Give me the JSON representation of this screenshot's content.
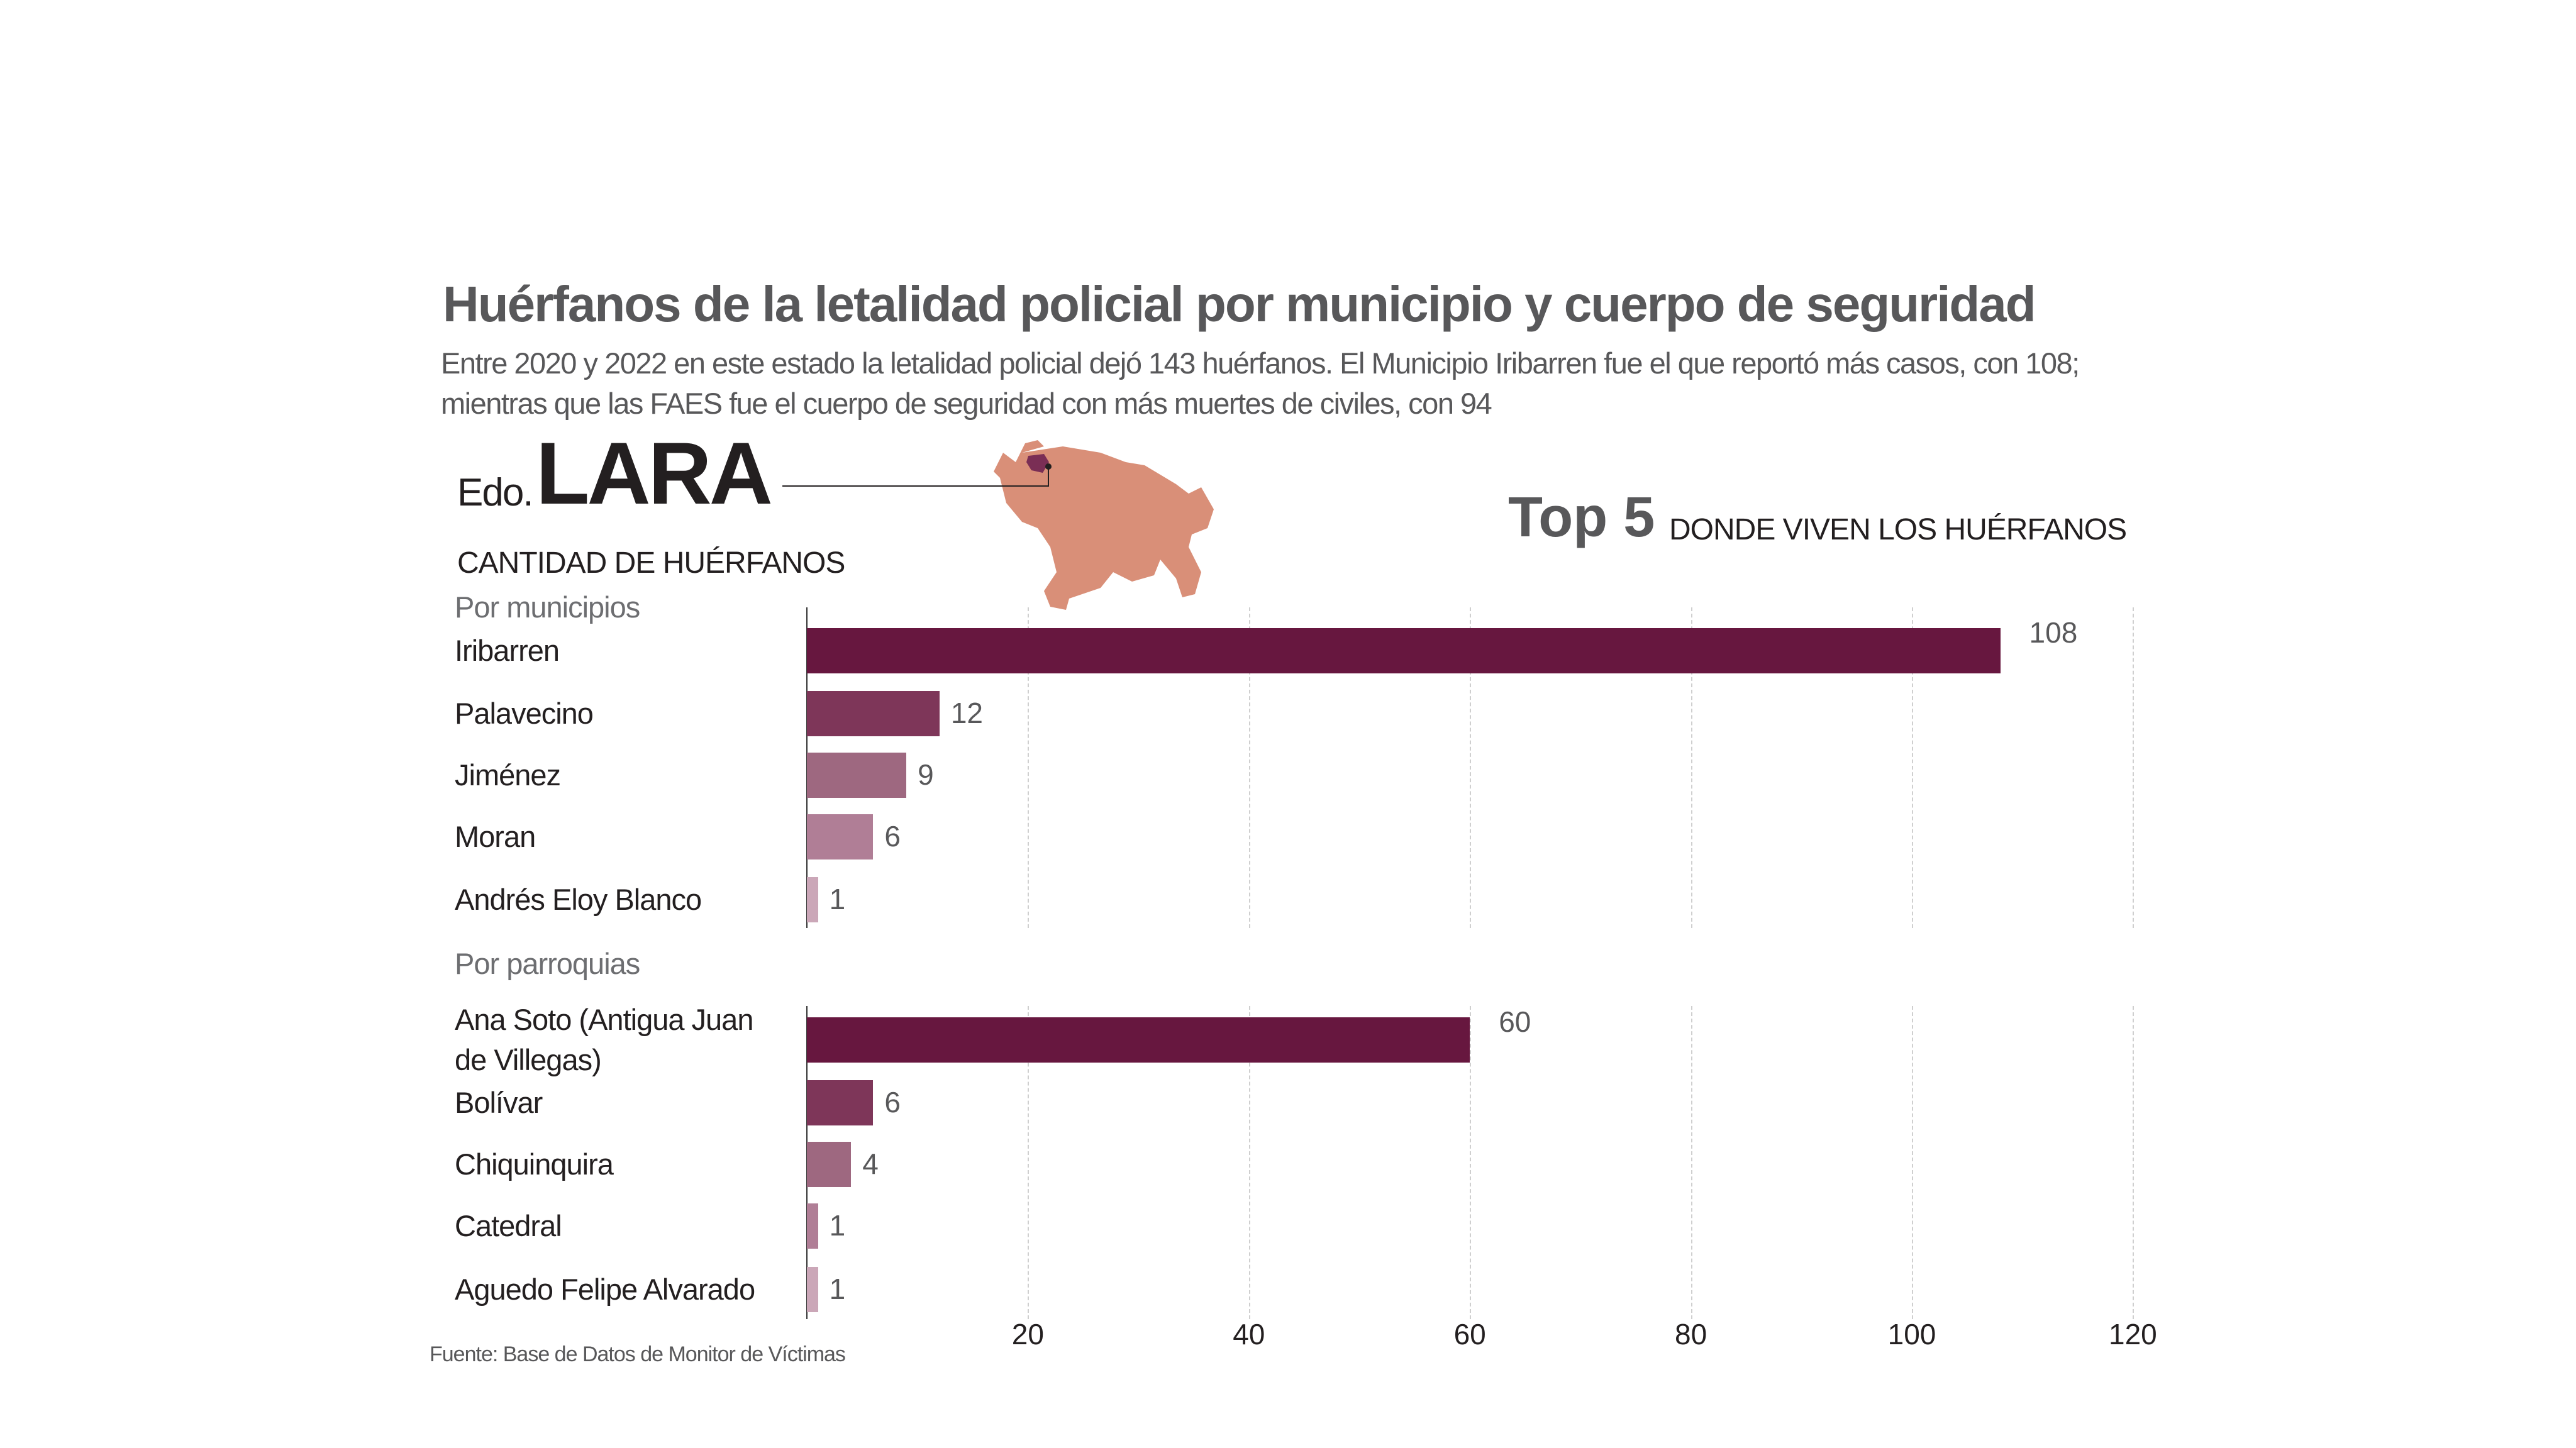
{
  "title": "Huérfanos de la letalidad policial por municipio y cuerpo de seguridad",
  "subtitle": [
    "Entre 2020 y 2022 en este estado la letalidad policial dejó 143 huérfanos. El Municipio Iribarren fue el que reportó más casos, con 108;",
    "mientras que las FAES fue el cuerpo de seguridad con más muertes de civiles, con 94"
  ],
  "state": {
    "prefix": "Edo.",
    "name": "LARA"
  },
  "top5": {
    "label": "Top 5",
    "sublabel": "DONDE VIVEN LOS HUÉRFANOS"
  },
  "measure_label": "CANTIDAD DE HUÉRFANOS",
  "source": "Fuente: Base de Datos de Monitor de Víctimas",
  "colors": {
    "map": "#d98f78",
    "map_highlight": "#7a2e55",
    "bars": [
      "#67173f",
      "#7e3659",
      "#9e6880",
      "#b07e96",
      "#cba7b8"
    ]
  },
  "chart_data": [
    {
      "type": "bar",
      "orientation": "horizontal",
      "title": "Por municipios",
      "categories": [
        "Iribarren",
        "Palavecino",
        "Jiménez",
        "Moran",
        "Andrés Eloy Blanco"
      ],
      "values": [
        108,
        12,
        9,
        6,
        1
      ],
      "xlim": [
        0,
        120
      ],
      "xticks": [
        "20",
        "40",
        "60",
        "80",
        "100",
        "120"
      ],
      "grid": true
    },
    {
      "type": "bar",
      "orientation": "horizontal",
      "title": "Por parroquias",
      "categories": [
        "Ana Soto (Antigua Juan de Villegas)",
        "Bolívar",
        "Chiquinquira",
        "Catedral",
        "Aguedo Felipe Alvarado"
      ],
      "category_lines": [
        [
          "Ana Soto (Antigua Juan",
          "de Villegas)"
        ],
        [
          "Bolívar"
        ],
        [
          "Chiquinquira"
        ],
        [
          "Catedral"
        ],
        [
          "Aguedo Felipe Alvarado"
        ]
      ],
      "values": [
        60,
        6,
        4,
        1,
        1
      ],
      "xlim": [
        0,
        120
      ],
      "xticks": [
        "20",
        "40",
        "60",
        "80",
        "100",
        "120"
      ],
      "grid": true
    }
  ]
}
